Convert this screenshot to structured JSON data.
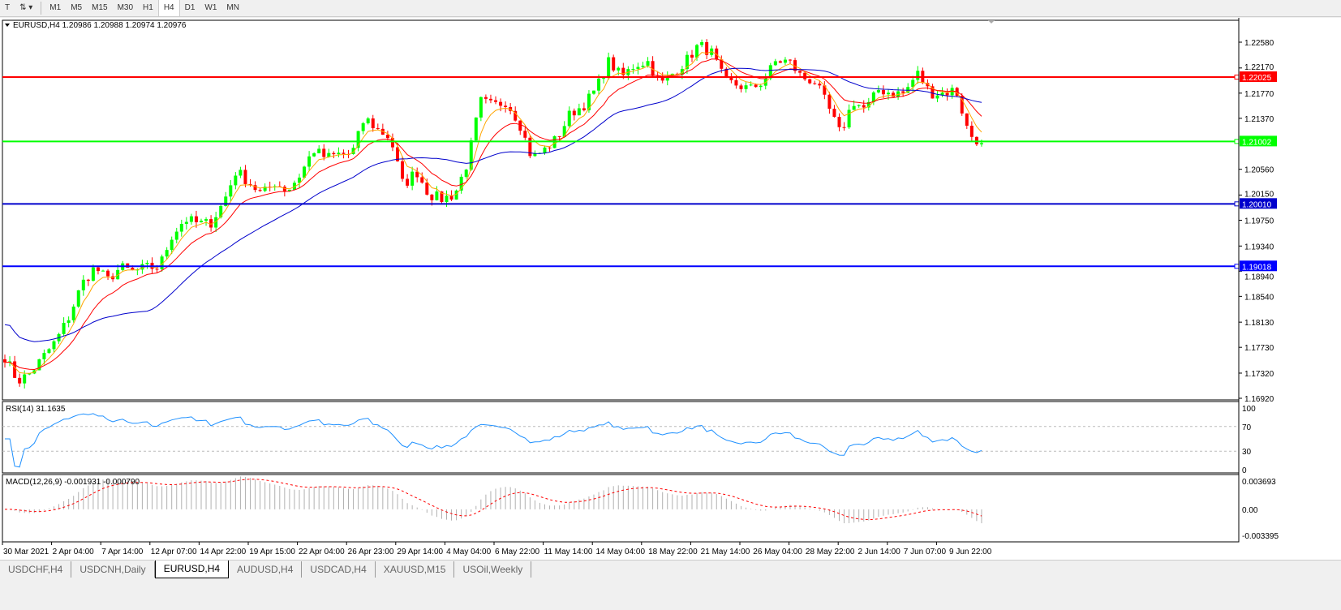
{
  "toolbar": {
    "icons": [
      "text-tool-icon",
      "line-tools-icon",
      "dropdown-arrow-icon"
    ],
    "timeframes": [
      "M1",
      "M5",
      "M15",
      "M30",
      "H1",
      "H4",
      "D1",
      "W1",
      "MN"
    ],
    "active": "H4"
  },
  "chart": {
    "title": "EURUSD,H4  1.20986 1.20988 1.20974 1.20976",
    "bull_color": "#00ff00",
    "bear_color": "#ff0000",
    "ma_fast_color": "#ffa500",
    "ma_mid_color": "#ff0000",
    "ma_slow_color": "#0000cc"
  },
  "price_axis": {
    "ticks": [
      "1.22580",
      "1.22170",
      "1.21770",
      "1.21370",
      "1.20560",
      "1.20150",
      "1.19750",
      "1.19340",
      "1.18940",
      "1.18540",
      "1.18130",
      "1.17730",
      "1.17320",
      "1.16920"
    ],
    "max": 1.2258,
    "min": 1.1692
  },
  "hlines": [
    {
      "price": 1.22025,
      "label": "1.22025",
      "color": "#ff0000"
    },
    {
      "price": 1.21002,
      "label": "1.21002",
      "color": "#00ff00"
    },
    {
      "price": 1.2001,
      "label": "1.20010",
      "color": "#0000cc"
    },
    {
      "price": 1.19018,
      "label": "1.19018",
      "color": "#0000ff"
    }
  ],
  "rsi": {
    "label": "RSI(14) 31.1635",
    "ticks": [
      "100",
      "70",
      "30",
      "0"
    ],
    "levels": [
      70,
      30
    ],
    "color": "#1e90ff"
  },
  "macd": {
    "label": "MACD(12,26,9) -0.001931 -0.000790",
    "ticks": [
      "0.003693",
      "0.00",
      "-0.003395"
    ]
  },
  "time_axis": [
    "30 Mar 2021",
    "2 Apr 04:00",
    "7 Apr 14:00",
    "12 Apr 07:00",
    "14 Apr 22:00",
    "19 Apr 15:00",
    "22 Apr 04:00",
    "26 Apr 23:00",
    "29 Apr 14:00",
    "4 May 04:00",
    "6 May 22:00",
    "11 May 14:00",
    "14 May 04:00",
    "18 May 22:00",
    "21 May 14:00",
    "26 May 04:00",
    "28 May 22:00",
    "2 Jun 14:00",
    "7 Jun 07:00",
    "9 Jun 22:00"
  ],
  "tabs": [
    "USDCHF,H4",
    "USDCNH,Daily",
    "EURUSD,H4",
    "AUDUSD,H4",
    "USDCAD,H4",
    "XAUUSD,M15",
    "USOil,Weekly"
  ],
  "active_tab": "EURUSD,H4",
  "chart_data": {
    "type": "candlestick",
    "symbol": "EURUSD",
    "timeframe": "H4",
    "approx_closes": [
      1.1758,
      1.1719,
      1.1732,
      1.1758,
      1.1784,
      1.1822,
      1.1874,
      1.19,
      1.188,
      1.19,
      1.1893,
      1.19,
      1.19,
      1.1951,
      1.1977,
      1.197,
      1.197,
      1.2003,
      1.2054,
      1.2035,
      1.2016,
      1.2035,
      1.2022,
      1.2048,
      1.2087,
      1.2074,
      1.208,
      1.208,
      1.2138,
      1.2119,
      1.2106,
      1.2029,
      1.2054,
      1.2016,
      1.2009,
      1.2016,
      1.2067,
      1.2164,
      1.2157,
      1.2164,
      1.2132,
      1.2074,
      1.2087,
      1.2106,
      1.2145,
      1.2157,
      1.2183,
      1.2228,
      1.2202,
      1.2222,
      1.2228,
      1.219,
      1.2209,
      1.2228,
      1.2254,
      1.2241,
      1.2196,
      1.219,
      1.2183,
      1.2196,
      1.2228,
      1.2228,
      1.2202,
      1.2196,
      1.2157,
      1.2112,
      1.2164,
      1.2151,
      1.2183,
      1.2177,
      1.2177,
      1.2209,
      1.2177,
      1.2177,
      1.2183,
      1.2112,
      1.2098
    ]
  }
}
